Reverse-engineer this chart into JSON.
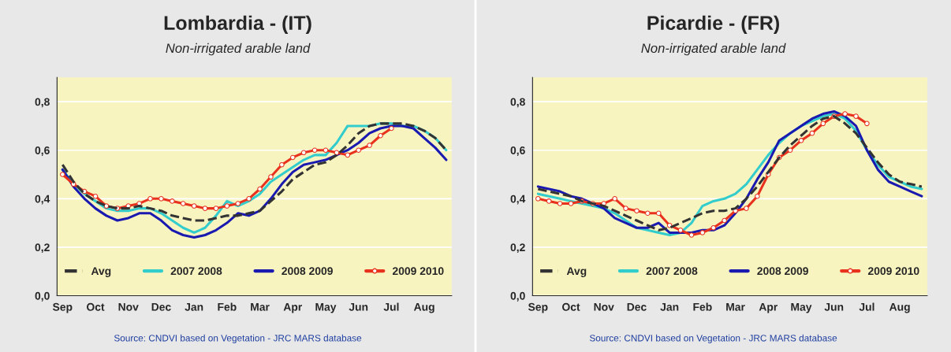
{
  "chart_data": [
    {
      "type": "line",
      "title": "Lombardia - (IT)",
      "subtitle": "Non-irrigated arable land",
      "categories": [
        "Sep",
        null,
        null,
        "Oct",
        null,
        null,
        "Nov",
        null,
        null,
        "Dec",
        null,
        null,
        "Jan",
        null,
        null,
        "Feb",
        null,
        null,
        "Mar",
        null,
        null,
        "Apr",
        null,
        null,
        "May",
        null,
        null,
        "Jun",
        null,
        null,
        "Jul",
        null,
        null,
        "Aug",
        null,
        null
      ],
      "series": [
        {
          "name": "Avg",
          "color": "#333333",
          "line_style": "dashed",
          "marker": "none",
          "values": [
            0.54,
            0.47,
            0.42,
            0.39,
            0.37,
            0.36,
            0.36,
            0.37,
            0.36,
            0.35,
            0.33,
            0.32,
            0.31,
            0.31,
            0.32,
            0.33,
            0.33,
            0.34,
            0.35,
            0.39,
            0.43,
            0.48,
            0.51,
            0.54,
            0.55,
            0.58,
            0.62,
            0.67,
            0.7,
            0.71,
            0.71,
            0.71,
            0.7,
            0.68,
            0.65,
            0.6
          ]
        },
        {
          "name": "2007 2008",
          "color": "#33cccc",
          "line_style": "solid",
          "marker": "none",
          "values": [
            0.52,
            0.46,
            0.42,
            0.39,
            0.36,
            0.35,
            0.35,
            0.36,
            0.36,
            0.34,
            0.31,
            0.28,
            0.26,
            0.28,
            0.33,
            0.39,
            0.37,
            0.39,
            0.42,
            0.47,
            0.5,
            0.53,
            0.56,
            0.58,
            0.58,
            0.63,
            0.7,
            0.7,
            0.7,
            0.71,
            0.71,
            0.7,
            0.7,
            0.68,
            0.65,
            0.6
          ]
        },
        {
          "name": "2008 2009",
          "color": "#1a1ab0",
          "line_style": "solid",
          "marker": "none",
          "values": [
            0.52,
            0.45,
            0.4,
            0.36,
            0.33,
            0.31,
            0.32,
            0.34,
            0.34,
            0.31,
            0.27,
            0.25,
            0.24,
            0.25,
            0.27,
            0.3,
            0.34,
            0.33,
            0.35,
            0.4,
            0.46,
            0.51,
            0.54,
            0.55,
            0.56,
            0.58,
            0.6,
            0.63,
            0.67,
            0.69,
            0.7,
            0.7,
            0.69,
            0.65,
            0.61,
            0.56
          ]
        },
        {
          "name": "2009 2010",
          "color": "#e8321e",
          "line_style": "solid",
          "marker": "circle",
          "values": [
            0.5,
            0.46,
            0.43,
            0.41,
            0.37,
            0.36,
            0.37,
            0.38,
            0.4,
            0.4,
            0.39,
            0.38,
            0.37,
            0.36,
            0.36,
            0.37,
            0.38,
            0.4,
            0.44,
            0.49,
            0.54,
            0.57,
            0.59,
            0.6,
            0.6,
            0.59,
            0.58,
            0.6,
            0.62,
            0.66,
            0.69,
            null,
            null,
            null,
            null,
            null
          ]
        }
      ],
      "ylim": [
        0,
        0.9
      ],
      "yticks": [
        {
          "value": 0,
          "label": "0,0"
        },
        {
          "value": 0.2,
          "label": "0,2"
        },
        {
          "value": 0.4,
          "label": "0,4"
        },
        {
          "value": 0.6,
          "label": "0,6"
        },
        {
          "value": 0.8,
          "label": "0,8"
        }
      ],
      "grid": "y",
      "legend": "bottom",
      "annotations": [
        "Source: CNDVI based on Vegetation - JRC MARS database"
      ]
    },
    {
      "type": "line",
      "title": "Picardie - (FR)",
      "subtitle": "Non-irrigated arable land",
      "categories": [
        "Sep",
        null,
        null,
        "Oct",
        null,
        null,
        "Nov",
        null,
        null,
        "Dec",
        null,
        null,
        "Jan",
        null,
        null,
        "Feb",
        null,
        null,
        "Mar",
        null,
        null,
        "Apr",
        null,
        null,
        "May",
        null,
        null,
        "Jun",
        null,
        null,
        "Jul",
        null,
        null,
        "Aug",
        null,
        null
      ],
      "series": [
        {
          "name": "Avg",
          "color": "#333333",
          "line_style": "dashed",
          "marker": "none",
          "values": [
            0.44,
            0.43,
            0.42,
            0.41,
            0.39,
            0.38,
            0.37,
            0.35,
            0.33,
            0.31,
            0.29,
            0.27,
            0.28,
            0.3,
            0.32,
            0.34,
            0.35,
            0.35,
            0.36,
            0.4,
            0.45,
            0.51,
            0.57,
            0.62,
            0.66,
            0.7,
            0.73,
            0.74,
            0.71,
            0.67,
            0.61,
            0.55,
            0.5,
            0.47,
            0.46,
            0.45
          ]
        },
        {
          "name": "2007 2008",
          "color": "#33cccc",
          "line_style": "solid",
          "marker": "none",
          "values": [
            0.42,
            0.41,
            0.4,
            0.39,
            0.38,
            0.37,
            0.36,
            0.34,
            0.31,
            0.28,
            0.27,
            0.26,
            0.25,
            0.26,
            0.3,
            0.37,
            0.39,
            0.4,
            0.42,
            0.46,
            0.52,
            0.58,
            0.63,
            0.67,
            0.7,
            0.72,
            0.74,
            0.75,
            0.73,
            0.68,
            0.6,
            0.54,
            0.49,
            0.47,
            0.45,
            0.44
          ]
        },
        {
          "name": "2008 2009",
          "color": "#1a1ab0",
          "line_style": "solid",
          "marker": "none",
          "values": [
            0.45,
            0.44,
            0.43,
            0.41,
            0.4,
            0.38,
            0.36,
            0.32,
            0.3,
            0.28,
            0.28,
            0.3,
            0.26,
            0.26,
            0.26,
            0.27,
            0.27,
            0.29,
            0.34,
            0.4,
            0.48,
            0.55,
            0.64,
            0.67,
            0.7,
            0.73,
            0.75,
            0.76,
            0.74,
            0.7,
            0.6,
            0.52,
            0.47,
            0.45,
            0.43,
            0.41
          ]
        },
        {
          "name": "2009 2010",
          "color": "#e8321e",
          "line_style": "solid",
          "marker": "circle",
          "values": [
            0.4,
            0.39,
            0.38,
            0.38,
            0.39,
            0.38,
            0.38,
            0.4,
            0.36,
            0.35,
            0.34,
            0.34,
            0.29,
            0.27,
            0.25,
            0.26,
            0.28,
            0.31,
            0.35,
            0.36,
            0.41,
            0.5,
            0.57,
            0.6,
            0.64,
            0.67,
            0.71,
            0.74,
            0.75,
            0.74,
            0.71,
            null,
            null,
            null,
            null,
            null
          ]
        }
      ],
      "ylim": [
        0,
        0.9
      ],
      "yticks": [
        {
          "value": 0,
          "label": "0,0"
        },
        {
          "value": 0.2,
          "label": "0,2"
        },
        {
          "value": 0.4,
          "label": "0,4"
        },
        {
          "value": 0.6,
          "label": "0,6"
        },
        {
          "value": 0.8,
          "label": "0,8"
        }
      ],
      "grid": "y",
      "legend": "bottom",
      "annotations": [
        "Source: CNDVI based on Vegetation - JRC MARS database"
      ]
    }
  ]
}
